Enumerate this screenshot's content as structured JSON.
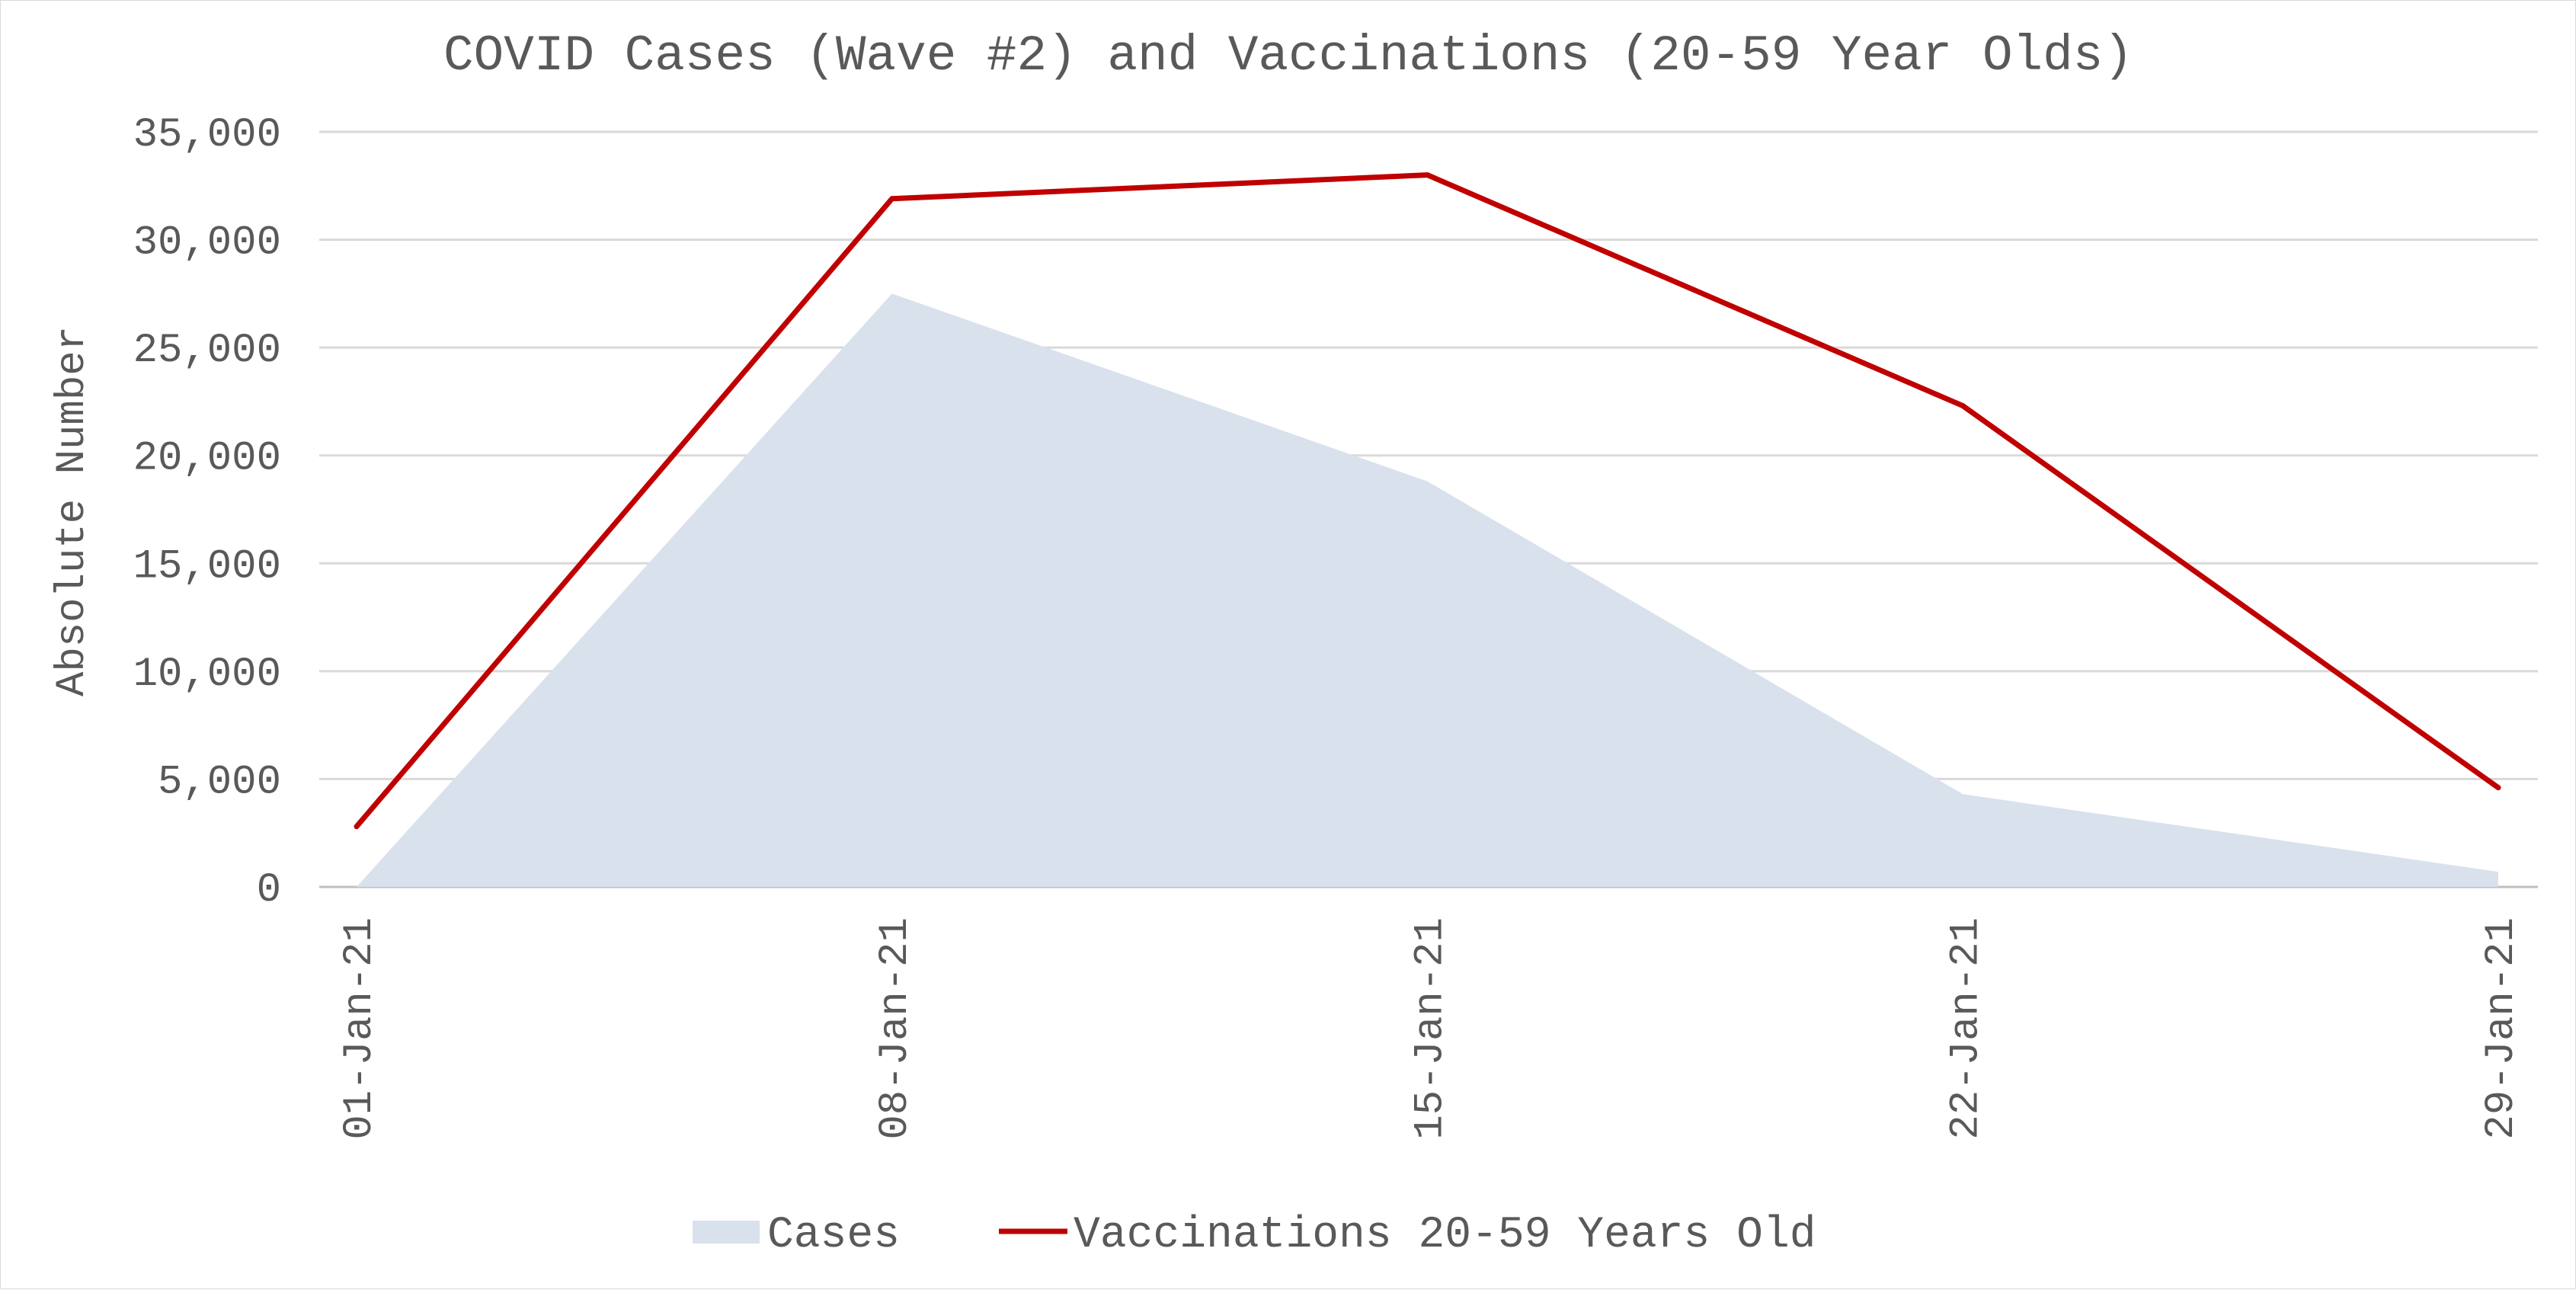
{
  "chart_data": {
    "type": "area",
    "title": "COVID Cases (Wave #2) and Vaccinations (20-59 Year Olds)",
    "xlabel": "",
    "ylabel": "Absolute Number",
    "categories": [
      "01-Jan-21",
      "08-Jan-21",
      "15-Jan-21",
      "22-Jan-21",
      "29-Jan-21"
    ],
    "ylim": [
      0,
      35000
    ],
    "yticks": [
      0,
      5000,
      10000,
      15000,
      20000,
      25000,
      30000,
      35000
    ],
    "ytick_labels": [
      "0",
      "5,000",
      "10,000",
      "15,000",
      "20,000",
      "25,000",
      "30,000",
      "35,000"
    ],
    "grid": true,
    "legend_position": "bottom",
    "series": [
      {
        "name": "Cases",
        "type": "area",
        "color": "#d9e1ed",
        "values": [
          0,
          27500,
          18800,
          4300,
          700
        ]
      },
      {
        "name": "Vaccinations 20-59 Years Old",
        "type": "line",
        "color": "#c00000",
        "values": [
          2800,
          31900,
          33000,
          22300,
          4600
        ]
      }
    ]
  }
}
